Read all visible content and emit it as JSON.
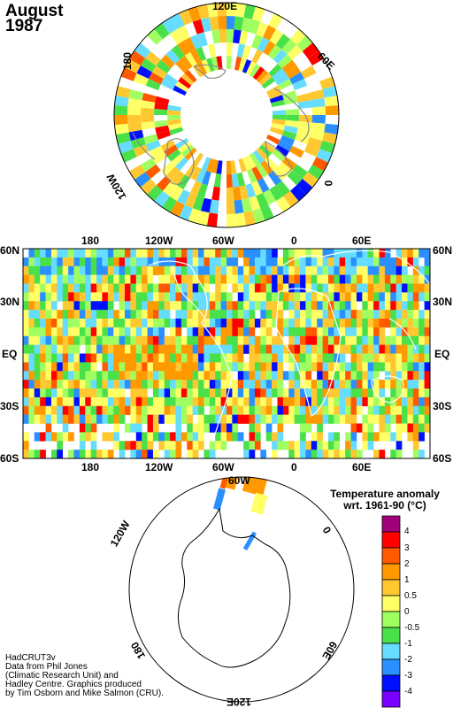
{
  "header": {
    "month": "August",
    "year": "1987"
  },
  "north_pole": {
    "labels": {
      "top": "120E",
      "right": "60E",
      "bottom_right": "0",
      "left": "180",
      "bottom_left": "120W"
    }
  },
  "world_map": {
    "top_axis": [
      "180",
      "120W",
      "60W",
      "0",
      "60E"
    ],
    "bottom_axis": [
      "180",
      "120W",
      "60W",
      "0",
      "60E"
    ],
    "left_axis": [
      "60N",
      "30N",
      "EQ",
      "30S",
      "60S"
    ],
    "right_axis": [
      "60N",
      "30N",
      "EQ",
      "30S",
      "60S"
    ]
  },
  "south_pole": {
    "labels": {
      "top": "60W",
      "right": "0",
      "bottom_right": "60E",
      "bottom": "120E",
      "bottom_left": "180",
      "left": "120W"
    }
  },
  "legend": {
    "title_line1": "Temperature anomaly",
    "title_line2": "wrt. 1961-90  (°C)",
    "levels": [
      "4",
      "3",
      "2",
      "1",
      "0.5",
      "0",
      "-0.5",
      "-1",
      "-2",
      "-3",
      "-4"
    ],
    "colors": [
      "#a0007a",
      "#ff0000",
      "#ff5a00",
      "#ff9900",
      "#ffc830",
      "#ffff66",
      "#a0ff60",
      "#4ae04a",
      "#66ddff",
      "#2a90ff",
      "#0010ff",
      "#7a00ff"
    ]
  },
  "credits": {
    "line1": "HadCRUT3v",
    "line2": "Data from Phil Jones",
    "line3": "(Climatic Research Unit) and",
    "line4": "Hadley Centre.  Graphics produced",
    "line5": "by Tim Osborn and Mike Salmon (CRU)."
  }
}
